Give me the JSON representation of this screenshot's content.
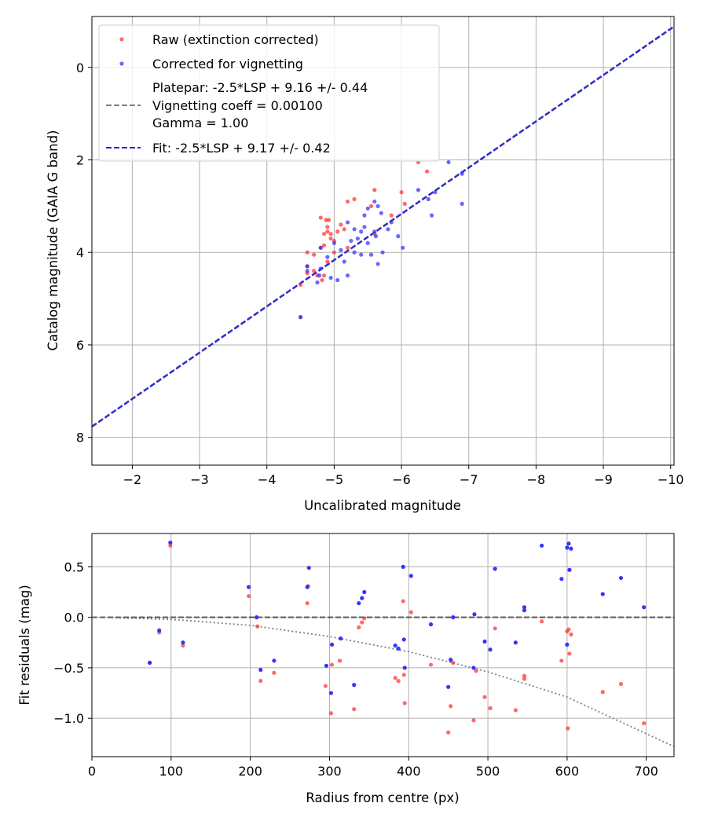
{
  "chart_data": [
    {
      "type": "scatter",
      "title": "",
      "xlabel": "Uncalibrated magnitude",
      "ylabel": "Catalog magnitude (GAIA G band)",
      "xlim": [
        -1.4,
        -10.05
      ],
      "ylim": [
        8.6,
        -1.1
      ],
      "x_inverted": true,
      "y_inverted": true,
      "xticks": [
        -2,
        -3,
        -4,
        -5,
        -6,
        -7,
        -8,
        -9,
        -10
      ],
      "xtick_labels": [
        "−2",
        "−3",
        "−4",
        "−5",
        "−6",
        "−7",
        "−8",
        "−9",
        "−10"
      ],
      "yticks": [
        0,
        2,
        4,
        6,
        8
      ],
      "ytick_labels": [
        "0",
        "2",
        "4",
        "6",
        "8"
      ],
      "grid": true,
      "legend_position": "top-left",
      "legend": [
        {
          "label": "Raw (extinction corrected)",
          "marker": "dot",
          "color": "#ff2a2a"
        },
        {
          "label": "Corrected for vignetting",
          "marker": "dot",
          "color": "#2a2aff"
        },
        {
          "label": "Platepar: -2.5*LSP + 9.16 +/- 0.44",
          "marker": "dash-gray"
        },
        {
          "label": "Vignetting coeff = 0.00100",
          "marker": "none"
        },
        {
          "label": "Gamma = 1.00",
          "marker": "none"
        },
        {
          "label": "Fit: -2.5*LSP + 9.17 +/- 0.42",
          "marker": "dash-blue"
        }
      ],
      "lines": [
        {
          "name": "Platepar",
          "slope": -2.5,
          "intercept": 9.16,
          "color": "#808080",
          "style": "dashed"
        },
        {
          "name": "Fit",
          "slope": -2.5,
          "intercept": 9.17,
          "color": "#2a2ad4",
          "style": "dashed"
        }
      ],
      "series": [
        {
          "name": "Raw (extinction corrected)",
          "color": "#ff2a2a",
          "points": [
            [
              -4.5,
              5.4
            ],
            [
              -4.5,
              4.7
            ],
            [
              -4.6,
              4.45
            ],
            [
              -4.6,
              4.3
            ],
            [
              -4.6,
              4.0
            ],
            [
              -4.7,
              4.4
            ],
            [
              -4.7,
              4.05
            ],
            [
              -4.75,
              4.5
            ],
            [
              -4.8,
              3.9
            ],
            [
              -4.8,
              3.25
            ],
            [
              -4.82,
              4.6
            ],
            [
              -4.85,
              4.5
            ],
            [
              -4.85,
              3.85
            ],
            [
              -4.85,
              3.6
            ],
            [
              -4.88,
              3.3
            ],
            [
              -4.9,
              4.2
            ],
            [
              -4.9,
              3.55
            ],
            [
              -4.9,
              3.45
            ],
            [
              -4.92,
              3.3
            ],
            [
              -4.95,
              3.7
            ],
            [
              -4.95,
              3.6
            ],
            [
              -5.0,
              3.75
            ],
            [
              -5.0,
              4.0
            ],
            [
              -5.05,
              3.55
            ],
            [
              -5.1,
              3.4
            ],
            [
              -5.15,
              3.5
            ],
            [
              -5.2,
              3.9
            ],
            [
              -5.2,
              2.9
            ],
            [
              -5.3,
              2.85
            ],
            [
              -5.55,
              3.0
            ],
            [
              -5.6,
              2.65
            ],
            [
              -5.6,
              3.6
            ],
            [
              -5.85,
              3.2
            ],
            [
              -6.0,
              2.7
            ],
            [
              -6.05,
              2.95
            ],
            [
              -6.25,
              2.05
            ],
            [
              -6.38,
              2.25
            ]
          ]
        },
        {
          "name": "Corrected for vignetting",
          "color": "#2a2aff",
          "points": [
            [
              -4.5,
              5.4
            ],
            [
              -4.6,
              4.3
            ],
            [
              -4.6,
              4.4
            ],
            [
              -4.75,
              4.65
            ],
            [
              -4.78,
              4.5
            ],
            [
              -4.8,
              4.35
            ],
            [
              -4.8,
              3.9
            ],
            [
              -4.9,
              4.1
            ],
            [
              -4.95,
              4.55
            ],
            [
              -5.0,
              3.8
            ],
            [
              -5.05,
              4.6
            ],
            [
              -5.1,
              3.95
            ],
            [
              -5.15,
              4.2
            ],
            [
              -5.2,
              4.5
            ],
            [
              -5.2,
              3.35
            ],
            [
              -5.25,
              3.75
            ],
            [
              -5.3,
              3.5
            ],
            [
              -5.3,
              4.0
            ],
            [
              -5.35,
              3.7
            ],
            [
              -5.4,
              3.55
            ],
            [
              -5.4,
              4.05
            ],
            [
              -5.45,
              3.2
            ],
            [
              -5.45,
              3.45
            ],
            [
              -5.5,
              3.8
            ],
            [
              -5.5,
              3.05
            ],
            [
              -5.55,
              4.05
            ],
            [
              -5.6,
              3.55
            ],
            [
              -5.6,
              2.9
            ],
            [
              -5.62,
              3.65
            ],
            [
              -5.65,
              3.0
            ],
            [
              -5.65,
              4.25
            ],
            [
              -5.7,
              3.15
            ],
            [
              -5.72,
              4.0
            ],
            [
              -5.8,
              3.5
            ],
            [
              -5.85,
              3.35
            ],
            [
              -5.95,
              3.65
            ],
            [
              -6.02,
              3.9
            ],
            [
              -6.25,
              2.65
            ],
            [
              -6.4,
              2.85
            ],
            [
              -6.45,
              3.2
            ],
            [
              -6.5,
              2.7
            ],
            [
              -6.7,
              2.05
            ],
            [
              -6.9,
              2.3
            ],
            [
              -6.9,
              2.95
            ]
          ]
        }
      ]
    },
    {
      "type": "scatter",
      "title": "",
      "xlabel": "Radius from centre (px)",
      "ylabel": "Fit residuals (mag)",
      "xlim": [
        0,
        735
      ],
      "ylim": [
        -1.38,
        0.83
      ],
      "xticks": [
        0,
        100,
        200,
        300,
        400,
        500,
        600,
        700
      ],
      "xtick_labels": [
        "0",
        "100",
        "200",
        "300",
        "400",
        "500",
        "600",
        "700"
      ],
      "yticks": [
        0.5,
        0.0,
        -0.5,
        -1.0
      ],
      "ytick_labels": [
        "0.5",
        "0.0",
        "−0.5",
        "−1.0"
      ],
      "grid": true,
      "lines": [
        {
          "name": "zero",
          "type": "hline",
          "y": 0,
          "color": "#555555",
          "style": "dashed"
        },
        {
          "name": "vignetting model",
          "type": "curve",
          "color": "#808080",
          "style": "dotted",
          "x": [
            0,
            100,
            200,
            300,
            400,
            500,
            600,
            735
          ],
          "y": [
            0,
            -0.02,
            -0.08,
            -0.19,
            -0.34,
            -0.54,
            -0.79,
            -1.28
          ]
        }
      ],
      "series": [
        {
          "name": "Raw (extinction corrected)",
          "color": "#ff2a2a",
          "points": [
            [
              73,
              -0.45
            ],
            [
              85,
              -0.15
            ],
            [
              99,
              0.71
            ],
            [
              115,
              -0.28
            ],
            [
              198,
              0.21
            ],
            [
              209,
              -0.09
            ],
            [
              213,
              -0.63
            ],
            [
              230,
              -0.55
            ],
            [
              272,
              0.14
            ],
            [
              273,
              0.31
            ],
            [
              295,
              -0.68
            ],
            [
              302,
              -0.95
            ],
            [
              303,
              -0.47
            ],
            [
              313,
              -0.43
            ],
            [
              331,
              -0.91
            ],
            [
              337,
              -0.1
            ],
            [
              341,
              -0.05
            ],
            [
              344,
              -0.01
            ],
            [
              383,
              -0.6
            ],
            [
              387,
              -0.63
            ],
            [
              393,
              0.16
            ],
            [
              394,
              -0.57
            ],
            [
              395,
              -0.85
            ],
            [
              403,
              0.05
            ],
            [
              428,
              -0.47
            ],
            [
              450,
              -1.14
            ],
            [
              453,
              -0.88
            ],
            [
              456,
              -0.45
            ],
            [
              482,
              -1.02
            ],
            [
              485,
              -0.53
            ],
            [
              496,
              -0.79
            ],
            [
              503,
              -0.9
            ],
            [
              509,
              -0.11
            ],
            [
              535,
              -0.92
            ],
            [
              546,
              -0.58
            ],
            [
              546,
              -0.61
            ],
            [
              568,
              -0.04
            ],
            [
              593,
              -0.43
            ],
            [
              600,
              -0.14
            ],
            [
              601,
              -1.1
            ],
            [
              602,
              -0.12
            ],
            [
              603,
              -0.36
            ],
            [
              605,
              -0.17
            ],
            [
              645,
              -0.74
            ],
            [
              668,
              -0.66
            ],
            [
              697,
              -1.05
            ]
          ]
        },
        {
          "name": "Corrected for vignetting",
          "color": "#2a2aff",
          "points": [
            [
              73,
              -0.45
            ],
            [
              85,
              -0.13
            ],
            [
              99,
              0.74
            ],
            [
              115,
              -0.25
            ],
            [
              198,
              0.3
            ],
            [
              208,
              0.0
            ],
            [
              213,
              -0.52
            ],
            [
              230,
              -0.43
            ],
            [
              272,
              0.3
            ],
            [
              274,
              0.49
            ],
            [
              296,
              -0.48
            ],
            [
              302,
              -0.75
            ],
            [
              303,
              -0.27
            ],
            [
              314,
              -0.21
            ],
            [
              331,
              -0.67
            ],
            [
              337,
              0.14
            ],
            [
              341,
              0.19
            ],
            [
              344,
              0.25
            ],
            [
              383,
              -0.28
            ],
            [
              387,
              -0.31
            ],
            [
              393,
              0.5
            ],
            [
              394,
              -0.22
            ],
            [
              395,
              -0.5
            ],
            [
              403,
              0.41
            ],
            [
              428,
              -0.07
            ],
            [
              450,
              -0.69
            ],
            [
              453,
              -0.42
            ],
            [
              456,
              0.0
            ],
            [
              482,
              -0.5
            ],
            [
              483,
              0.03
            ],
            [
              496,
              -0.24
            ],
            [
              503,
              -0.32
            ],
            [
              509,
              0.48
            ],
            [
              535,
              -0.25
            ],
            [
              546,
              0.07
            ],
            [
              546,
              0.1
            ],
            [
              568,
              0.71
            ],
            [
              593,
              0.38
            ],
            [
              600,
              -0.27
            ],
            [
              600,
              0.69
            ],
            [
              602,
              0.73
            ],
            [
              603,
              0.47
            ],
            [
              605,
              0.68
            ],
            [
              645,
              0.23
            ],
            [
              668,
              0.39
            ],
            [
              697,
              0.1
            ]
          ]
        }
      ]
    }
  ]
}
